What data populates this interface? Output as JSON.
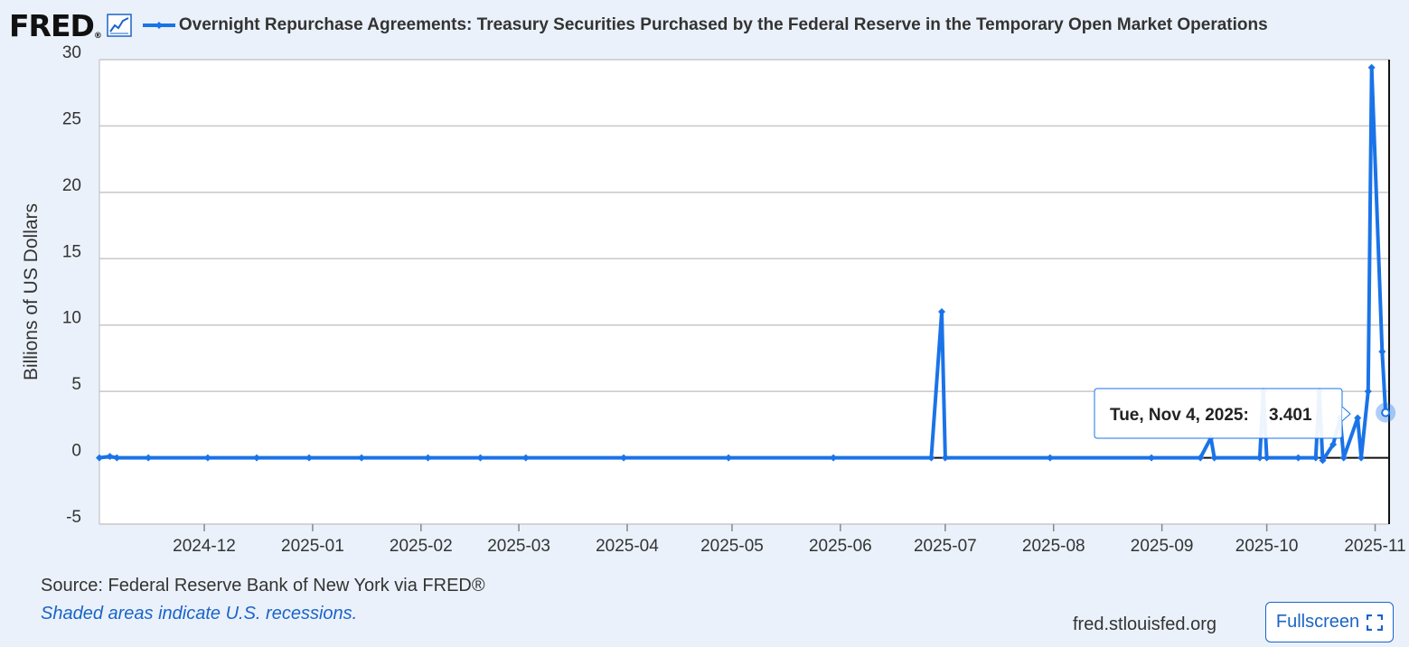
{
  "header": {
    "logo_text": "FRED",
    "logo_mark": "®",
    "title": "Overnight Repurchase Agreements: Treasury Securities Purchased by the Federal Reserve in the Temporary Open Market Operations"
  },
  "footer": {
    "source": "Source: Federal Reserve Bank of New York via FRED®",
    "recession_note": "Shaded areas indicate U.S. recessions.",
    "site": "fred.stlouisfed.org",
    "fullscreen_label": "Fullscreen"
  },
  "colors": {
    "series": "#1a73e8",
    "background": "#eaf1fa",
    "plot_bg": "#ffffff",
    "grid": "#c8c8c8",
    "accent": "#1a64c8"
  },
  "icons": [
    "graph-icon",
    "fullscreen-icon"
  ],
  "chart_data": {
    "type": "line",
    "title": "Overnight Repurchase Agreements: Treasury Securities Purchased by the Federal Reserve in the Temporary Open Market Operations",
    "xlabel": "",
    "ylabel": "Billions of US Dollars",
    "ylim": [
      -5,
      30
    ],
    "xlim": [
      "2024-11-01",
      "2025-11-05"
    ],
    "y_ticks": [
      "30",
      "25",
      "20",
      "15",
      "10",
      "5",
      "0",
      "-5"
    ],
    "x_ticks": [
      "2024-12",
      "2025-01",
      "2025-02",
      "2025-03",
      "2025-04",
      "2025-05",
      "2025-06",
      "2025-07",
      "2025-08",
      "2025-09",
      "2025-10",
      "2025-11"
    ],
    "grid": true,
    "legend": "top",
    "tooltip": {
      "date_label": "Tue, Nov 4, 2025:",
      "value_label": "3.401",
      "date": "2025-11-04",
      "value": 3.401
    },
    "series": [
      {
        "name": "Overnight Repurchase Agreements: Treasury Securities Purchased by the Federal Reserve in the Temporary Open Market Operations",
        "points": [
          [
            "2024-11-01",
            0.0
          ],
          [
            "2024-11-04",
            0.1
          ],
          [
            "2024-11-06",
            0.0
          ],
          [
            "2024-11-15",
            0.0
          ],
          [
            "2024-12-02",
            0.0
          ],
          [
            "2024-12-16",
            0.0
          ],
          [
            "2024-12-31",
            0.0
          ],
          [
            "2025-01-15",
            0.0
          ],
          [
            "2025-02-03",
            0.0
          ],
          [
            "2025-02-18",
            0.0
          ],
          [
            "2025-03-03",
            0.0
          ],
          [
            "2025-03-31",
            0.0
          ],
          [
            "2025-04-30",
            0.0
          ],
          [
            "2025-05-30",
            0.0
          ],
          [
            "2025-06-27",
            0.0
          ],
          [
            "2025-06-30",
            11.0
          ],
          [
            "2025-07-01",
            0.0
          ],
          [
            "2025-07-31",
            0.0
          ],
          [
            "2025-08-29",
            0.0
          ],
          [
            "2025-09-12",
            0.0
          ],
          [
            "2025-09-15",
            1.5
          ],
          [
            "2025-09-16",
            0.0
          ],
          [
            "2025-09-29",
            0.0
          ],
          [
            "2025-09-30",
            5.0
          ],
          [
            "2025-10-01",
            0.0
          ],
          [
            "2025-10-10",
            0.0
          ],
          [
            "2025-10-15",
            0.0
          ],
          [
            "2025-10-16",
            5.0
          ],
          [
            "2025-10-17",
            -0.2
          ],
          [
            "2025-10-20",
            1.0
          ],
          [
            "2025-10-22",
            3.0
          ],
          [
            "2025-10-23",
            0.0
          ],
          [
            "2025-10-27",
            3.0
          ],
          [
            "2025-10-28",
            0.0
          ],
          [
            "2025-10-30",
            5.0
          ],
          [
            "2025-10-31",
            29.4
          ],
          [
            "2025-11-03",
            8.0
          ],
          [
            "2025-11-04",
            3.401
          ]
        ]
      }
    ]
  }
}
